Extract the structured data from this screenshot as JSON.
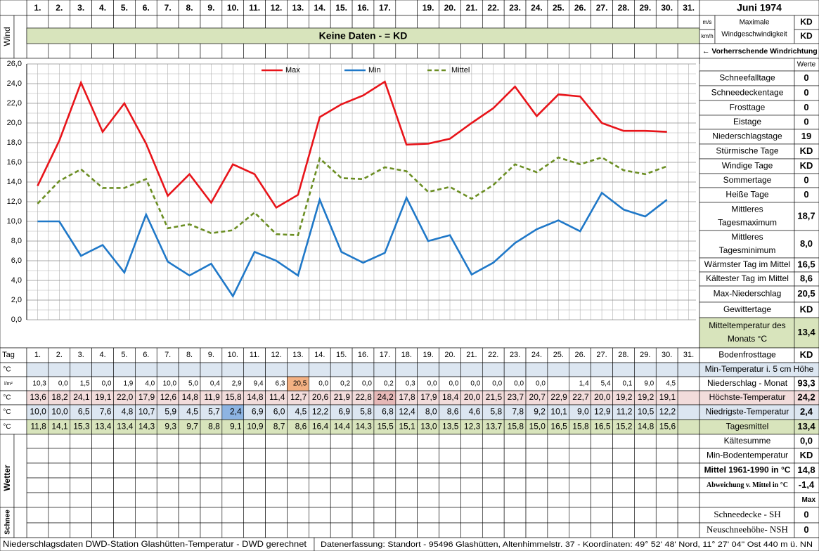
{
  "header": {
    "title": "Juni 1974",
    "wind_label": "Wind",
    "no_data": "Keine Daten -  = KD",
    "day_labels": [
      "1.",
      "2.",
      "3.",
      "4.",
      "5.",
      "6.",
      "7.",
      "8.",
      "9.",
      "10.",
      "11.",
      "12.",
      "13.",
      "14.",
      "15.",
      "16.",
      "17.",
      null,
      "19.",
      "20.",
      "21.",
      "22.",
      "23.",
      "24.",
      "25.",
      "26.",
      "27.",
      "28.",
      "29.",
      "30.",
      "31."
    ],
    "wind_units": [
      "m/s",
      "km/h"
    ],
    "wind_max_label": [
      "Maximale",
      "Windgeschwindigkeit"
    ],
    "wind_values": [
      "KD",
      "KD"
    ],
    "wind_direction": "← Vorherrschende Windrichtung",
    "values_header": "Werte"
  },
  "chart_data": {
    "type": "line",
    "ylim": [
      0,
      26
    ],
    "yticks": [
      {
        "value": 0,
        "label": "0,0"
      },
      {
        "value": 2,
        "label": "2,0"
      },
      {
        "value": 4,
        "label": "4,0"
      },
      {
        "value": 6,
        "label": "6,0"
      },
      {
        "value": 8,
        "label": "8,0"
      },
      {
        "value": 10,
        "label": "10,0"
      },
      {
        "value": 12,
        "label": "12,0"
      },
      {
        "value": 14,
        "label": "14,0"
      },
      {
        "value": 16,
        "label": "16,0"
      },
      {
        "value": 18,
        "label": "18,0"
      },
      {
        "value": 20,
        "label": "20,0"
      },
      {
        "value": 22,
        "label": "22,0"
      },
      {
        "value": 24,
        "label": "24,0"
      },
      {
        "value": 26,
        "label": "26,0"
      }
    ],
    "grid": true,
    "legend": "top",
    "series": [
      {
        "name": "Max",
        "color": "#e8141a",
        "dash": false,
        "values": [
          13.6,
          18.2,
          24.1,
          19.1,
          22.0,
          17.9,
          12.6,
          14.8,
          11.9,
          15.8,
          14.8,
          11.4,
          12.7,
          20.6,
          21.9,
          22.8,
          24.2,
          17.8,
          17.9,
          18.4,
          20.0,
          21.5,
          23.7,
          20.7,
          22.9,
          22.7,
          20.0,
          19.2,
          19.2,
          19.1
        ],
        "value_labels": [
          "13,6",
          "18,2",
          "24,1",
          "19,1",
          "22,0",
          "17,9",
          "12,6",
          "14,8",
          "11,9",
          "15,8",
          "14,8",
          "11,4",
          "12,7",
          "20,6",
          "21,9",
          "22,8",
          "24,2",
          "17,8",
          "17,9",
          "18,4",
          "20,0",
          "21,5",
          "23,7",
          "20,7",
          "22,9",
          "22,7",
          "20,0",
          "19,2",
          "19,2",
          "19,1"
        ]
      },
      {
        "name": "Min",
        "color": "#1f78c8",
        "dash": false,
        "values": [
          10.0,
          10.0,
          6.5,
          7.6,
          4.8,
          10.7,
          5.9,
          4.5,
          5.7,
          2.4,
          6.9,
          6.0,
          4.5,
          12.2,
          6.9,
          5.8,
          6.8,
          12.4,
          8.0,
          8.6,
          4.6,
          5.8,
          7.8,
          9.2,
          10.1,
          9.0,
          12.9,
          11.2,
          10.5,
          12.2
        ],
        "value_labels": [
          "10,0",
          "10,0",
          "6,5",
          "7,6",
          "4,8",
          "10,7",
          "5,9",
          "4,5",
          "5,7",
          "2,4",
          "6,9",
          "6,0",
          "4,5",
          "12,2",
          "6,9",
          "5,8",
          "6,8",
          "12,4",
          "8,0",
          "8,6",
          "4,6",
          "5,8",
          "7,8",
          "9,2",
          "10,1",
          "9,0",
          "12,9",
          "11,2",
          "10,5",
          "12,2"
        ]
      },
      {
        "name": "Mittel",
        "color": "#6b8e23",
        "dash": true,
        "values": [
          11.8,
          14.1,
          15.3,
          13.4,
          13.4,
          14.3,
          9.3,
          9.7,
          8.8,
          9.1,
          10.9,
          8.7,
          8.6,
          16.4,
          14.4,
          14.3,
          15.5,
          15.1,
          13.0,
          13.5,
          12.3,
          13.7,
          15.8,
          15.0,
          16.5,
          15.8,
          16.5,
          15.2,
          14.8,
          15.6
        ],
        "value_labels": [
          "11,8",
          "14,1",
          "15,3",
          "13,4",
          "13,4",
          "14,3",
          "9,3",
          "9,7",
          "8,8",
          "9,1",
          "10,9",
          "8,7",
          "8,6",
          "16,4",
          "14,4",
          "14,3",
          "15,5",
          "15,1",
          "13,0",
          "13,5",
          "12,3",
          "13,7",
          "15,8",
          "15,0",
          "16,5",
          "15,8",
          "16,5",
          "15,2",
          "14,8",
          "15,6"
        ]
      }
    ]
  },
  "table": {
    "day_header": "Tag",
    "days": [
      "1.",
      "2.",
      "3.",
      "4.",
      "5.",
      "6.",
      "7.",
      "8.",
      "9.",
      "10.",
      "11.",
      "12.",
      "13.",
      "14.",
      "15.",
      "16.",
      "17.",
      "18.",
      "19.",
      "20.",
      "21.",
      "22.",
      "23.",
      "24.",
      "25.",
      "26.",
      "27.",
      "28.",
      "29.",
      "30.",
      "31."
    ],
    "units": [
      "°C",
      "l/m²",
      "°C",
      "°C",
      "°C"
    ],
    "precipitation": [
      "10,3",
      "0,0",
      "1,5",
      "0,0",
      "1,9",
      "4,0",
      "10,0",
      "5,0",
      "0,4",
      "2,9",
      "9,4",
      "6,3",
      "20,5",
      "0,0",
      "0,2",
      "0,0",
      "0,2",
      "0,3",
      "0,0",
      "0,0",
      "0,0",
      "0,0",
      "0,0",
      "0,0",
      null,
      "1,4",
      "5,4",
      "0,1",
      "9,0",
      "4,5"
    ],
    "weather_label": "Wetter",
    "snow_label": "Schnee"
  },
  "stats": [
    {
      "label": [
        "Schneefalltage"
      ],
      "value": "0"
    },
    {
      "label": [
        "Schneedeckentage"
      ],
      "value": "0"
    },
    {
      "label": [
        "Frosttage"
      ],
      "value": "0"
    },
    {
      "label": [
        "Eistage"
      ],
      "value": "0"
    },
    {
      "label": [
        "Niederschlagstage"
      ],
      "value": "19"
    },
    {
      "label": [
        "Stürmische Tage"
      ],
      "value": "KD"
    },
    {
      "label": [
        "Windige Tage"
      ],
      "value": "KD"
    },
    {
      "label": [
        "Sommertage"
      ],
      "value": "0"
    },
    {
      "label": [
        "Heiße Tage"
      ],
      "value": "0"
    },
    {
      "label": [
        "Mittleres",
        "Tagesmaximum"
      ],
      "value": "18,7"
    },
    {
      "label": [
        "Mittleres",
        "Tagesminimum"
      ],
      "value": "8,0"
    },
    {
      "label": [
        "Wärmster Tag im Mittel"
      ],
      "value": "16,5"
    },
    {
      "label": [
        "Kältester Tag im Mittel"
      ],
      "value": "8,6"
    },
    {
      "label": [
        "Max-Niederschlag"
      ],
      "value": "20,5"
    },
    {
      "label": [
        "Gewittertage"
      ],
      "value": "KD"
    },
    {
      "label": [
        "Mitteltemperatur des",
        "Monats °C"
      ],
      "value": "13,4"
    },
    {
      "label": [
        "Bodenfrosttage"
      ],
      "value": "KD"
    },
    {
      "label": [
        "Min-Temperatur i. 5 cm Höhe"
      ]
    },
    {
      "label": [
        "Niederschlag - Monat"
      ],
      "value": "93,3"
    },
    {
      "label": [
        "Höchste-Temperatur"
      ],
      "value": "24,2"
    },
    {
      "label": [
        "Niedrigste-Temperatur"
      ],
      "value": "2,4"
    },
    {
      "label": [
        "Tagesmittel"
      ],
      "value": "13,4"
    },
    {
      "label": [
        "Kältesumme"
      ],
      "value": "0,0"
    },
    {
      "label": [
        "Min-Bodentemperatur"
      ],
      "value": "KD"
    },
    {
      "label": [
        "Mittel 1961-1990 in °C"
      ],
      "value": "14,8"
    },
    {
      "label": [
        "Abweichung v. Mittel in °C"
      ],
      "value": "-1,4"
    },
    {
      "value": "Max"
    },
    {
      "label": [
        "Schneedecke -  SH"
      ],
      "value": "0"
    },
    {
      "label": [
        "Neuschneehöhe- NSH"
      ],
      "value": "0"
    }
  ],
  "footer": {
    "left": "Niederschlagsdaten DWD-Station Glashütten-Temperatur -  DWD gerechnet",
    "right": "Datenerfassung: Standort - 95496 Glashütten, Altenhimmelstr. 37 - Koordinaten: 49° 52' 48' Nord,  11° 27' 04'' Ost  440 m ü. NN"
  }
}
